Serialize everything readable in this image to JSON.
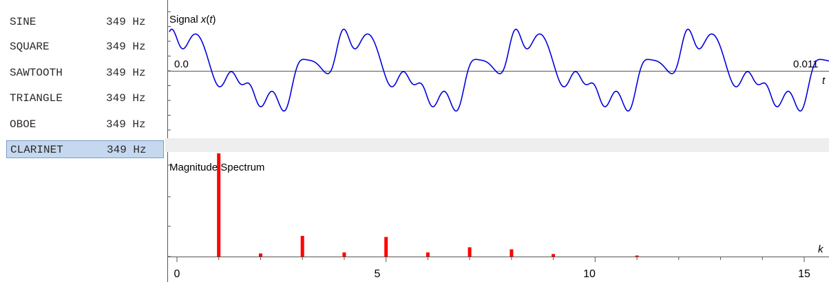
{
  "waveforms": [
    {
      "name": "SINE",
      "freq": "349 Hz",
      "selected": false
    },
    {
      "name": "SQUARE",
      "freq": "349 Hz",
      "selected": false
    },
    {
      "name": "SAWTOOTH",
      "freq": "349 Hz",
      "selected": false
    },
    {
      "name": "TRIANGLE",
      "freq": "349 Hz",
      "selected": false
    },
    {
      "name": "OBOE",
      "freq": "349 Hz",
      "selected": false
    },
    {
      "name": "CLARINET",
      "freq": "349 Hz",
      "selected": true
    }
  ],
  "chart_data": [
    {
      "type": "line",
      "title": "Signal x(t)",
      "title_main": "Signal ",
      "title_var": "x",
      "title_paren_open": "(",
      "title_arg": "t",
      "title_paren_close": ")",
      "xlabel": "t",
      "x_tick_labels": [
        "0.0",
        "0.011"
      ],
      "xlim": [
        0,
        0.011
      ],
      "ylim": [
        -1,
        1
      ],
      "line_color": "#0000dd",
      "period_s": 0.00287,
      "harmonics": [
        {
          "k": 1,
          "amplitude": 0.45,
          "phase": 1.2
        },
        {
          "k": 3,
          "amplitude": 0.16,
          "phase": -0.5
        },
        {
          "k": 5,
          "amplitude": 0.15,
          "phase": 1.9
        },
        {
          "k": 7,
          "amplitude": 0.08,
          "phase": 0.4
        },
        {
          "k": 8,
          "amplitude": 0.06,
          "phase": 2.2
        },
        {
          "k": 2,
          "amplitude": 0.02,
          "phase": 0.0
        },
        {
          "k": 4,
          "amplitude": 0.03,
          "phase": 0.7
        },
        {
          "k": 6,
          "amplitude": 0.03,
          "phase": 1.5
        },
        {
          "k": 9,
          "amplitude": 0.025,
          "phase": 0.3
        },
        {
          "k": 11,
          "amplitude": 0.01,
          "phase": 1.0
        }
      ]
    },
    {
      "type": "bar",
      "title": "Magnitude Spectrum",
      "xlabel": "k",
      "x_tick_labels": [
        "0",
        "5",
        "10",
        "15"
      ],
      "xlim": [
        0,
        15.3
      ],
      "ylim": [
        0,
        1
      ],
      "bar_color": "#ff0000",
      "x": [
        1,
        2,
        3,
        4,
        5,
        6,
        7,
        8,
        9,
        11
      ],
      "values": [
        1.0,
        0.03,
        0.2,
        0.04,
        0.19,
        0.04,
        0.09,
        0.07,
        0.025,
        0.01
      ]
    }
  ]
}
